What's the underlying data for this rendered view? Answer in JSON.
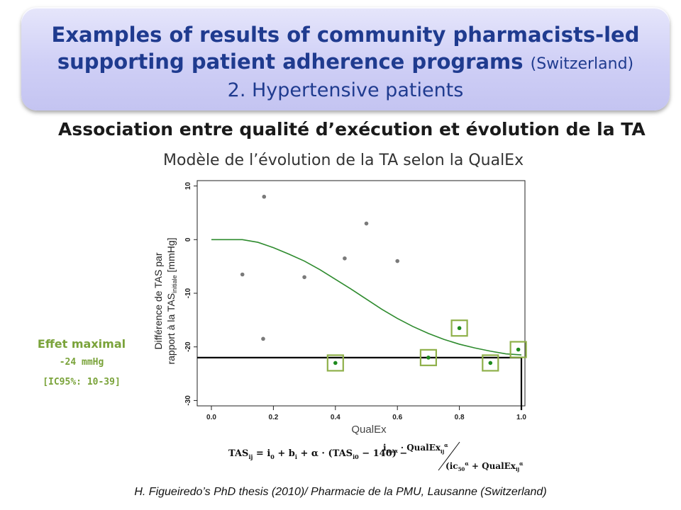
{
  "header": {
    "title_line1": "Examples of results of community pharmacists-led",
    "title_line2": "supporting patient adherence programs",
    "title_country": "(Switzerland)",
    "subtitle": "2. Hypertensive patients"
  },
  "section_heading": "Association entre qualité d’exécution et évolution de la TA",
  "model_title": "Modèle de l’évolution de la TA selon la QualEx",
  "effect": {
    "title": "Effet maximal",
    "value": "-24 mmHg",
    "ci": "[IC95%: 10-39]"
  },
  "chart_data": {
    "type": "scatter",
    "xlabel": "QualEx",
    "ylabel_line1": "Différence de TAS  par",
    "ylabel_line2": "rapport à la TAS",
    "ylabel_sub": "initiale",
    "ylabel_unit": " [mmHg]",
    "xlim": [
      0.0,
      1.0
    ],
    "ylim": [
      -31,
      11
    ],
    "x_ticks": [
      "0.0",
      "0.2",
      "0.4",
      "0.6",
      "0.8",
      "1.0"
    ],
    "x_tick_values": [
      0.0,
      0.2,
      0.4,
      0.6,
      0.8,
      1.0
    ],
    "y_ticks": [
      "10",
      "0",
      "-10",
      "-20",
      "-30"
    ],
    "y_tick_values": [
      10,
      0,
      -10,
      -20,
      -30
    ],
    "grey_points": [
      {
        "x": 0.1,
        "y": -6.5
      },
      {
        "x": 0.17,
        "y": 8.0
      },
      {
        "x": 0.167,
        "y": -18.5
      },
      {
        "x": 0.3,
        "y": -7.0
      },
      {
        "x": 0.43,
        "y": -3.5
      },
      {
        "x": 0.5,
        "y": 3.0
      },
      {
        "x": 0.6,
        "y": -4.0
      }
    ],
    "highlighted_points": [
      {
        "x": 0.4,
        "y": -23.0
      },
      {
        "x": 0.7,
        "y": -22.0
      },
      {
        "x": 0.8,
        "y": -16.5
      },
      {
        "x": 0.9,
        "y": -23.0
      },
      {
        "x": 0.99,
        "y": -20.5
      }
    ],
    "curve": {
      "x": [
        0.0,
        0.05,
        0.1,
        0.15,
        0.2,
        0.25,
        0.3,
        0.35,
        0.4,
        0.45,
        0.5,
        0.55,
        0.6,
        0.65,
        0.7,
        0.75,
        0.8,
        0.85,
        0.9,
        0.95,
        1.0
      ],
      "y": [
        0.0,
        0.0,
        0.0,
        -0.5,
        -1.5,
        -2.7,
        -4.0,
        -5.6,
        -7.4,
        -9.2,
        -11.1,
        -13.0,
        -14.7,
        -16.2,
        -17.5,
        -18.6,
        -19.5,
        -20.2,
        -20.8,
        -21.3,
        -21.5
      ]
    },
    "max_effect_y": -22.0,
    "max_effect_x": 1.0,
    "colors": {
      "curve": "#2e8b2e",
      "grey_point": "#7a7a7a",
      "green_point": "#1e8a1e",
      "box": "#8fb04a",
      "line": "#000000"
    }
  },
  "formula": {
    "lhs": "TAS",
    "text_a": " = i",
    "text_b": " + b",
    "text_c": " + α · (TAS",
    "text_d": " − 140) − ",
    "imax": "i",
    "imax_sub": "max",
    "num": " · QualEx",
    "den_a": "ic",
    "den_b": " + QualEx"
  },
  "footer": "H. Figueiredo’s  PhD thesis (2010)/ Pharmacie de la PMU, Lausanne (Switzerland)"
}
